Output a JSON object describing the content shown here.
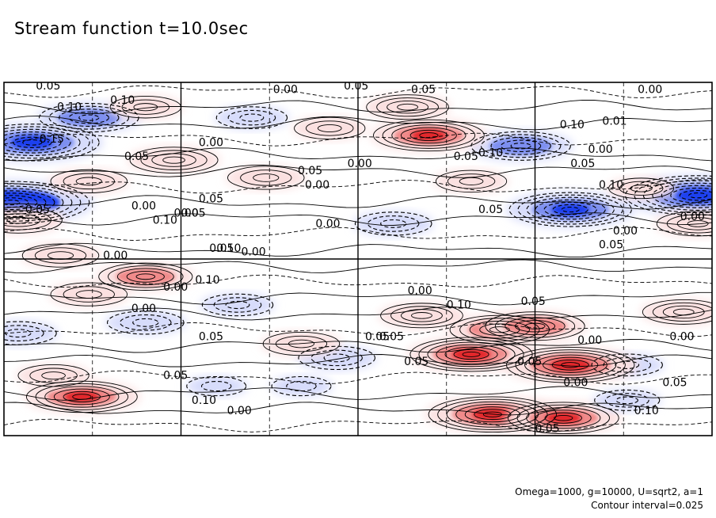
{
  "title": "Stream function t=10.0sec",
  "footer": {
    "params": "Omega=1000, g=10000, U=sqrt2, a=1",
    "interval": "Contour interval=0.025"
  },
  "colors": {
    "negative_strong": "#1f3ff0",
    "negative_mid": "#7d8ff0",
    "negative_light": "#d7dcfb",
    "positive_light": "#fbe0e0",
    "positive_mid": "#f08a8a",
    "positive_strong": "#e3262a",
    "frame": "#000000",
    "grid": "#000000"
  },
  "chart_data": {
    "type": "heatmap",
    "title": "Stream function t=10.0sec",
    "xlabel": "",
    "ylabel": "",
    "contour_interval": 0.025,
    "grid": "dashed quarter divisions with solid panel lines",
    "colormap": "blue (negative) – white – red (positive)",
    "features": [
      {
        "x": 0.04,
        "y": 0.83,
        "value": -0.16
      },
      {
        "x": 0.01,
        "y": 0.66,
        "value": -0.2
      },
      {
        "x": 0.12,
        "y": 0.9,
        "value": -0.1
      },
      {
        "x": 0.35,
        "y": 0.9,
        "value": -0.05
      },
      {
        "x": 0.55,
        "y": 0.6,
        "value": -0.06
      },
      {
        "x": 0.98,
        "y": 0.68,
        "value": -0.18
      },
      {
        "x": 0.8,
        "y": 0.64,
        "value": -0.14
      },
      {
        "x": 0.73,
        "y": 0.82,
        "value": -0.1
      },
      {
        "x": 0.2,
        "y": 0.32,
        "value": -0.06
      },
      {
        "x": 0.33,
        "y": 0.37,
        "value": -0.05
      },
      {
        "x": 0.47,
        "y": 0.22,
        "value": -0.06
      },
      {
        "x": 0.88,
        "y": 0.2,
        "value": -0.05
      },
      {
        "x": 0.02,
        "y": 0.29,
        "value": -0.06
      },
      {
        "x": 0.12,
        "y": 0.72,
        "value": 0.06
      },
      {
        "x": 0.2,
        "y": 0.93,
        "value": 0.05
      },
      {
        "x": 0.24,
        "y": 0.78,
        "value": 0.08
      },
      {
        "x": 0.37,
        "y": 0.73,
        "value": 0.06
      },
      {
        "x": 0.46,
        "y": 0.87,
        "value": 0.05
      },
      {
        "x": 0.57,
        "y": 0.93,
        "value": 0.07
      },
      {
        "x": 0.6,
        "y": 0.85,
        "value": 0.12
      },
      {
        "x": 0.66,
        "y": 0.72,
        "value": 0.05
      },
      {
        "x": 0.9,
        "y": 0.7,
        "value": 0.04
      },
      {
        "x": 0.98,
        "y": 0.6,
        "value": 0.07
      },
      {
        "x": 0.02,
        "y": 0.61,
        "value": 0.08
      },
      {
        "x": 0.08,
        "y": 0.51,
        "value": 0.06
      },
      {
        "x": 0.2,
        "y": 0.45,
        "value": 0.09
      },
      {
        "x": 0.12,
        "y": 0.4,
        "value": 0.06
      },
      {
        "x": 0.42,
        "y": 0.26,
        "value": 0.06
      },
      {
        "x": 0.59,
        "y": 0.34,
        "value": 0.07
      },
      {
        "x": 0.66,
        "y": 0.23,
        "value": 0.14
      },
      {
        "x": 0.7,
        "y": 0.3,
        "value": 0.1
      },
      {
        "x": 0.8,
        "y": 0.2,
        "value": 0.15
      },
      {
        "x": 0.75,
        "y": 0.31,
        "value": 0.1
      },
      {
        "x": 0.96,
        "y": 0.35,
        "value": 0.07
      },
      {
        "x": 0.11,
        "y": 0.11,
        "value": 0.12
      },
      {
        "x": 0.07,
        "y": 0.17,
        "value": 0.05
      },
      {
        "x": 0.69,
        "y": 0.06,
        "value": 0.15
      },
      {
        "x": 0.79,
        "y": 0.05,
        "value": 0.12
      },
      {
        "x": 0.3,
        "y": 0.14,
        "value": -0.03
      },
      {
        "x": 0.42,
        "y": 0.14,
        "value": -0.03
      },
      {
        "x": 0.88,
        "y": 0.1,
        "value": -0.04
      }
    ],
    "labels": [
      {
        "text": "0.05",
        "x": 0.09,
        "y": 0.98
      },
      {
        "text": "0.10",
        "x": 0.15,
        "y": 0.92
      },
      {
        "text": "0.10",
        "x": 0.3,
        "y": 0.94
      },
      {
        "text": "0.15",
        "x": 0.1,
        "y": 0.83
      },
      {
        "text": "0.05",
        "x": 0.34,
        "y": 0.78
      },
      {
        "text": "0.00",
        "x": 0.55,
        "y": 0.82
      },
      {
        "text": "0.00",
        "x": 0.76,
        "y": 0.97
      },
      {
        "text": "0.00",
        "x": 0.97,
        "y": 0.76
      },
      {
        "text": "0.05",
        "x": 0.96,
        "y": 0.98
      },
      {
        "text": "0.05",
        "x": 0.83,
        "y": 0.74
      },
      {
        "text": "0.05",
        "x": 1.15,
        "y": 0.97
      },
      {
        "text": "0.10",
        "x": 1.34,
        "y": 0.79
      },
      {
        "text": "0.05",
        "x": 1.27,
        "y": 0.78
      },
      {
        "text": "0.10",
        "x": 1.57,
        "y": 0.87
      },
      {
        "text": "0.01",
        "x": 1.69,
        "y": 0.88
      },
      {
        "text": "0.00",
        "x": 1.65,
        "y": 0.8
      },
      {
        "text": "0.05",
        "x": 1.6,
        "y": 0.76
      },
      {
        "text": "0.00",
        "x": 1.79,
        "y": 0.97
      },
      {
        "text": "0.00",
        "x": 0.85,
        "y": 0.7
      },
      {
        "text": "0.05",
        "x": 1.34,
        "y": 0.63
      },
      {
        "text": "0.05",
        "x": 0.55,
        "y": 0.66
      },
      {
        "text": "0.00",
        "x": 0.36,
        "y": 0.64
      },
      {
        "text": "0.05",
        "x": 0.5,
        "y": 0.62
      },
      {
        "text": "0.10",
        "x": 0.42,
        "y": 0.6
      },
      {
        "text": "0.00",
        "x": 0.48,
        "y": 0.62
      },
      {
        "text": "0.00",
        "x": 0.88,
        "y": 0.59
      },
      {
        "text": "0.05",
        "x": 0.58,
        "y": 0.52
      },
      {
        "text": "0.00",
        "x": 0.67,
        "y": 0.51
      },
      {
        "text": "0.05",
        "x": 0.06,
        "y": 0.63
      },
      {
        "text": "0.10",
        "x": 0.6,
        "y": 0.52
      },
      {
        "text": "0.10",
        "x": 1.68,
        "y": 0.7
      },
      {
        "text": "0.00",
        "x": 1.72,
        "y": 0.57
      },
      {
        "text": "0.05",
        "x": 1.68,
        "y": 0.53
      },
      {
        "text": "0.00",
        "x": 1.91,
        "y": 0.61
      },
      {
        "text": "0.00",
        "x": 0.28,
        "y": 0.5
      },
      {
        "text": "0.00",
        "x": 0.45,
        "y": 0.41
      },
      {
        "text": "0.10",
        "x": 0.54,
        "y": 0.43
      },
      {
        "text": "0.00",
        "x": 0.36,
        "y": 0.35
      },
      {
        "text": "0.05",
        "x": 0.55,
        "y": 0.27
      },
      {
        "text": "0.00",
        "x": 1.14,
        "y": 0.4
      },
      {
        "text": "0.10",
        "x": 1.25,
        "y": 0.36
      },
      {
        "text": "0.05",
        "x": 1.46,
        "y": 0.37
      },
      {
        "text": "0.05",
        "x": 1.02,
        "y": 0.27
      },
      {
        "text": "0.05",
        "x": 1.06,
        "y": 0.27
      },
      {
        "text": "0.05",
        "x": 1.13,
        "y": 0.2
      },
      {
        "text": "0.00",
        "x": 1.62,
        "y": 0.26
      },
      {
        "text": "0.00",
        "x": 1.88,
        "y": 0.27
      },
      {
        "text": "0.05",
        "x": 0.45,
        "y": 0.16
      },
      {
        "text": "0.10",
        "x": 0.53,
        "y": 0.09
      },
      {
        "text": "0.00",
        "x": 0.63,
        "y": 0.06
      },
      {
        "text": "0.05",
        "x": 1.45,
        "y": 0.2
      },
      {
        "text": "0.00",
        "x": 1.58,
        "y": 0.14
      },
      {
        "text": "0.05",
        "x": 1.86,
        "y": 0.14
      },
      {
        "text": "0.10",
        "x": 1.78,
        "y": 0.06
      },
      {
        "text": "0.05",
        "x": 1.5,
        "y": 0.01
      }
    ]
  }
}
